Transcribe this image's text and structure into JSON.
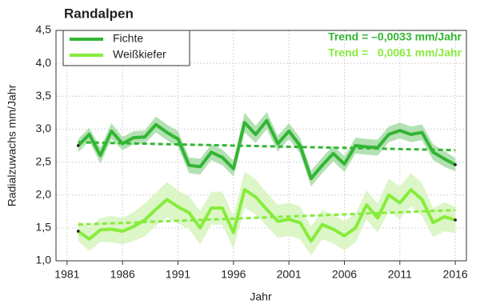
{
  "chart_data": {
    "type": "line",
    "title": "Randalpen",
    "xlabel": "Jahr",
    "ylabel": "Radialzuwachs mm/Jahr",
    "x": [
      1982,
      1983,
      1984,
      1985,
      1986,
      1987,
      1988,
      1989,
      1990,
      1991,
      1992,
      1993,
      1994,
      1995,
      1996,
      1997,
      1998,
      1999,
      2000,
      2001,
      2002,
      2003,
      2004,
      2005,
      2006,
      2007,
      2008,
      2009,
      2010,
      2011,
      2012,
      2013,
      2014,
      2015,
      2016
    ],
    "xlim": [
      1980,
      2017
    ],
    "xticks": [
      1981,
      1986,
      1991,
      1996,
      2001,
      2006,
      2011,
      2016
    ],
    "ylim": [
      1.0,
      4.5
    ],
    "yticks": [
      {
        "value": 1.0,
        "label": "1,0"
      },
      {
        "value": 1.5,
        "label": "1,5"
      },
      {
        "value": 2.0,
        "label": "2,0"
      },
      {
        "value": 2.5,
        "label": "2,5"
      },
      {
        "value": 3.0,
        "label": "3,0"
      },
      {
        "value": 3.5,
        "label": "3,5"
      },
      {
        "value": 4.0,
        "label": "4,0"
      },
      {
        "value": 4.5,
        "label": "4,5"
      }
    ],
    "grid": true,
    "legend": "upper left",
    "series": [
      {
        "name": "Fichte",
        "color": "#33b533",
        "band_color": "#a6dca6",
        "values": [
          2.75,
          2.92,
          2.6,
          2.97,
          2.78,
          2.87,
          2.88,
          3.07,
          2.95,
          2.85,
          2.45,
          2.43,
          2.65,
          2.57,
          2.4,
          3.1,
          2.92,
          3.13,
          2.78,
          2.97,
          2.75,
          2.25,
          2.45,
          2.63,
          2.47,
          2.75,
          2.73,
          2.72,
          2.92,
          2.98,
          2.92,
          2.95,
          2.65,
          2.55,
          2.46
        ],
        "error": [
          0.1,
          0.1,
          0.12,
          0.12,
          0.1,
          0.1,
          0.1,
          0.12,
          0.12,
          0.12,
          0.12,
          0.12,
          0.12,
          0.12,
          0.12,
          0.15,
          0.13,
          0.13,
          0.12,
          0.12,
          0.12,
          0.12,
          0.12,
          0.12,
          0.12,
          0.12,
          0.12,
          0.12,
          0.12,
          0.12,
          0.12,
          0.12,
          0.12,
          0.12,
          0.1
        ],
        "trend": [
          2.8,
          2.68
        ],
        "trend_label": "Trend = –0,0033 mm/Jahr"
      },
      {
        "name": "Weißkiefer",
        "color": "#86ec3c",
        "band_color": "#d6f5bd",
        "values": [
          1.45,
          1.33,
          1.47,
          1.48,
          1.45,
          1.52,
          1.62,
          1.78,
          1.93,
          1.82,
          1.73,
          1.5,
          1.8,
          1.8,
          1.43,
          2.08,
          1.97,
          1.78,
          1.6,
          1.63,
          1.58,
          1.3,
          1.55,
          1.48,
          1.38,
          1.5,
          1.85,
          1.65,
          2.0,
          1.88,
          2.08,
          1.93,
          1.58,
          1.67,
          1.62
        ],
        "error": [
          0.15,
          0.18,
          0.18,
          0.2,
          0.2,
          0.22,
          0.25,
          0.25,
          0.27,
          0.25,
          0.25,
          0.25,
          0.25,
          0.25,
          0.25,
          0.27,
          0.27,
          0.25,
          0.25,
          0.25,
          0.25,
          0.22,
          0.22,
          0.22,
          0.22,
          0.22,
          0.22,
          0.22,
          0.25,
          0.25,
          0.25,
          0.25,
          0.22,
          0.22,
          0.2
        ],
        "trend": [
          1.55,
          1.77
        ],
        "trend_label": "Trend =   0,0061 mm/Jahr"
      }
    ]
  }
}
